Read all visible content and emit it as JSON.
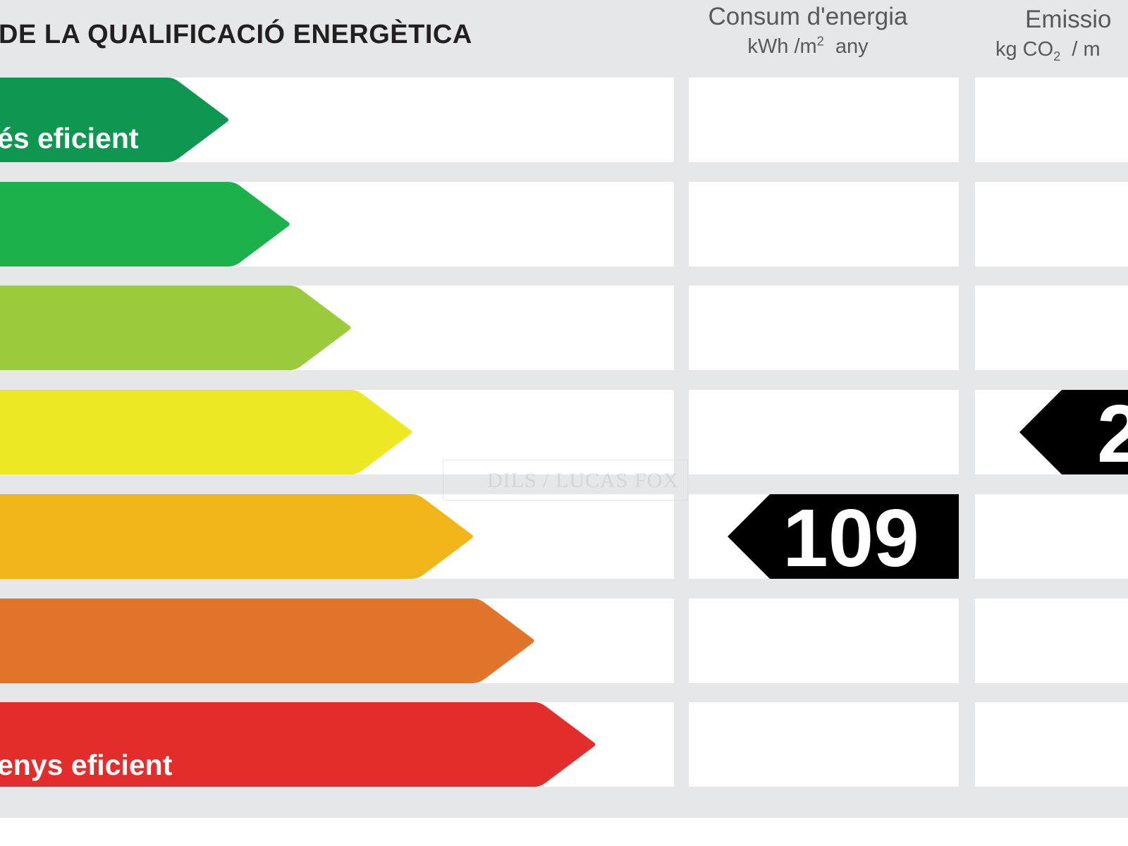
{
  "header": {
    "title": "DE LA QUALIFICACIÓ ENERGÈTICA",
    "consumption": {
      "title": "Consum d'energia",
      "unit_main": "kWh /m",
      "unit_sup": "2",
      "unit_tail": "any"
    },
    "emissions": {
      "title": "Emissio",
      "unit_main": "kg CO",
      "unit_sub": "2",
      "unit_tail": "/ m"
    }
  },
  "watermark": "DILS / LUCAS FOX",
  "colors": {
    "panel_bg": "#e6e7e8",
    "cell_bg": "#ffffff",
    "rating_arrow": "#000000"
  },
  "chart_data": {
    "type": "table",
    "scale": {
      "top_label": "és eficient",
      "bottom_label": "enys eficient",
      "classes": [
        {
          "color": "#0f9650"
        },
        {
          "color": "#1cb14b"
        },
        {
          "color": "#9bcb3c"
        },
        {
          "color": "#ece823"
        },
        {
          "color": "#f0b519"
        },
        {
          "color": "#e1752b"
        },
        {
          "color": "#e32c2c"
        }
      ]
    },
    "ratings": [
      {
        "column": "consumption",
        "value": "109",
        "class_index": 4
      },
      {
        "column": "emissions",
        "value": "2",
        "class_index": 3
      }
    ]
  }
}
